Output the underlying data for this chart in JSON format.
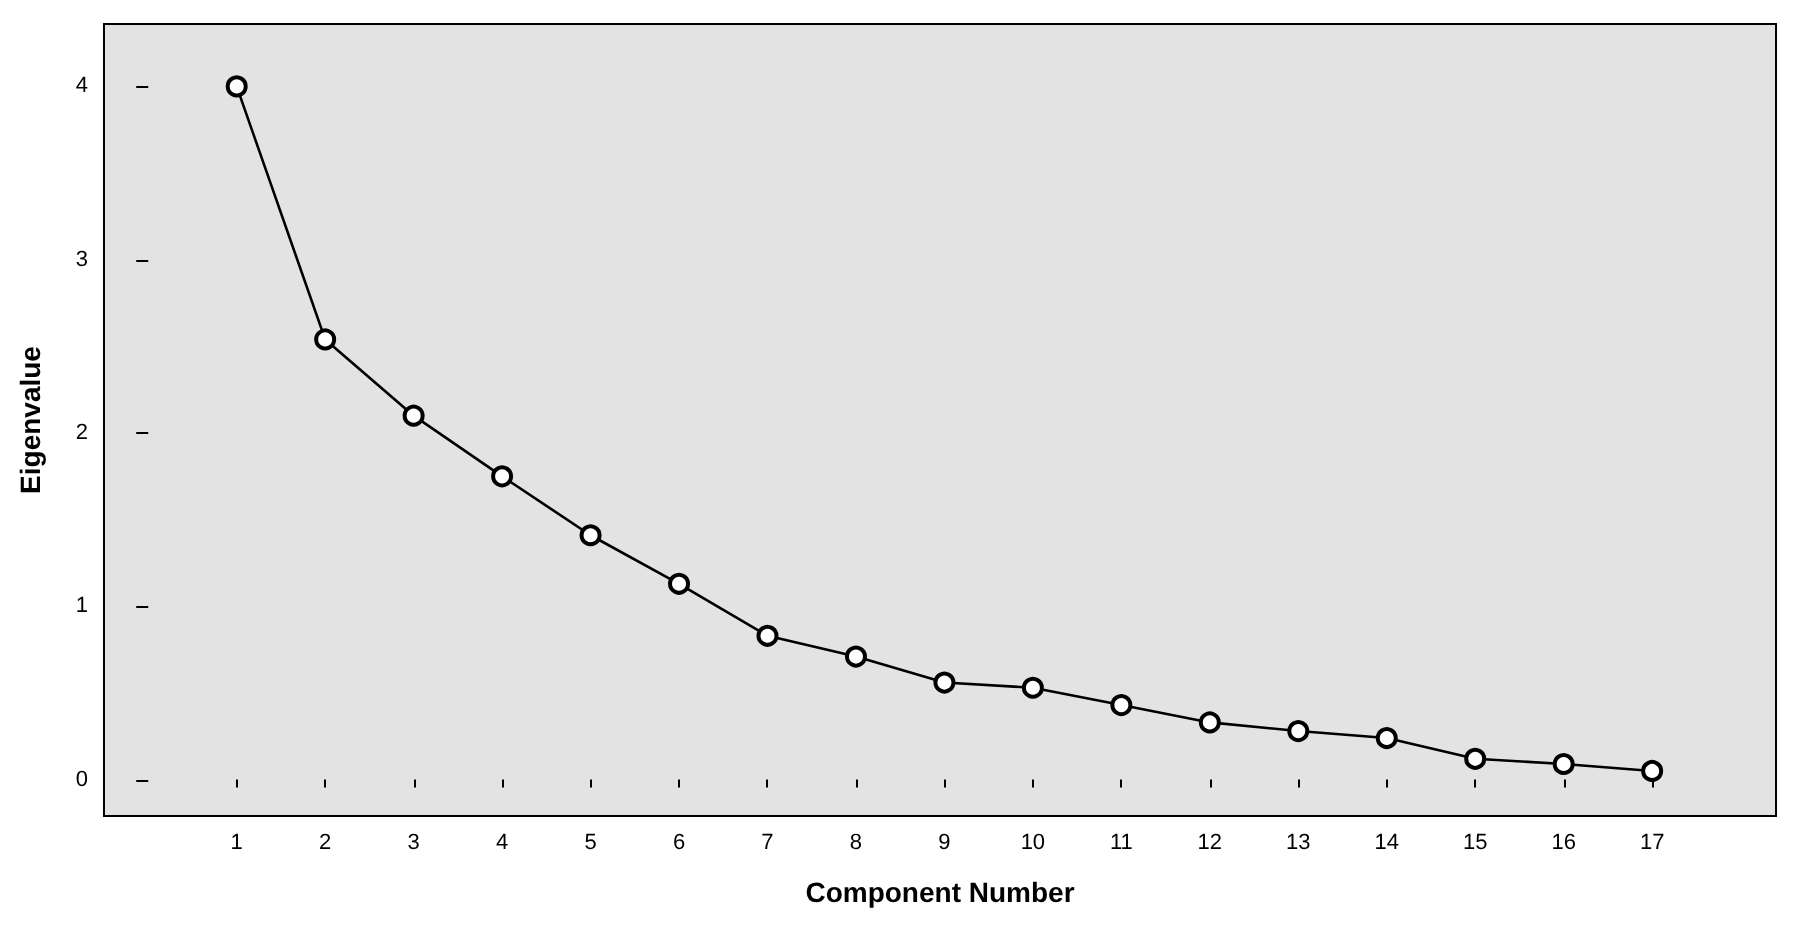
{
  "chart_data": {
    "type": "line",
    "xlabel": "Component Number",
    "ylabel": "Eigenvalue",
    "x": [
      1,
      2,
      3,
      4,
      5,
      6,
      7,
      8,
      9,
      10,
      11,
      12,
      13,
      14,
      15,
      16,
      17
    ],
    "series": [
      {
        "color": "#000000",
        "values": [
          4.0,
          2.54,
          2.1,
          1.75,
          1.41,
          1.13,
          0.83,
          0.71,
          0.56,
          0.53,
          0.43,
          0.33,
          0.28,
          0.24,
          0.12,
          0.09,
          0.05
        ]
      }
    ],
    "xlim": [
      -0.5,
      18.4
    ],
    "xticks": [
      1,
      2,
      3,
      4,
      5,
      6,
      7,
      8,
      9,
      10,
      11,
      12,
      13,
      14,
      15,
      16,
      17
    ],
    "ylim": [
      -0.21,
      4.36
    ],
    "yticks": [
      0,
      1,
      2,
      3,
      4
    ],
    "grid": false,
    "marker": "circle",
    "line_style": "solid"
  }
}
